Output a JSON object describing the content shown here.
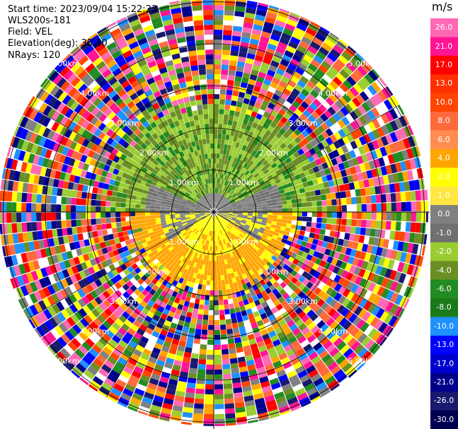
{
  "header": {
    "start_time": "Start time: 2023/09/04 15:22:23",
    "instrument": "WLS200s-181",
    "field": "Field: VEL",
    "elevation": "Elevation(deg): 35.30",
    "nrays": "NRays: 120"
  },
  "chart_data": {
    "type": "ppi",
    "field": "VEL",
    "units": "m/s",
    "nrays": 120,
    "range_rings_km": [
      1.0,
      2.0,
      3.0,
      4.0,
      5.0
    ],
    "ring_labels": [
      "1.00km",
      "2.00km",
      "3.00km",
      "4.00km",
      "5.00km"
    ],
    "colorbar": {
      "title": "m/s",
      "ticks": [
        "26.0",
        "21.0",
        "17.0",
        "13.0",
        "10.0",
        "8.0",
        "6.0",
        "4.0",
        "2.0",
        "1.0",
        "0.0",
        "-1.0",
        "-2.0",
        "-4.0",
        "-6.0",
        "-8.0",
        "-10.0",
        "-13.0",
        "-17.0",
        "-21.0",
        "-26.0",
        "-30.0"
      ],
      "colors": [
        "#ff69b4",
        "#ff1493",
        "#ff0000",
        "#ff3000",
        "#ff4500",
        "#ff6a3c",
        "#ff8c50",
        "#ffa500",
        "#ffff00",
        "#ffe640",
        "#808080",
        "#707070",
        "#9acd32",
        "#6b8e23",
        "#228b22",
        "#1a7a1a",
        "#1e90ff",
        "#0000ff",
        "#0000cd",
        "#00008b",
        "#191970",
        "#000050"
      ]
    },
    "rings": [
      {
        "range_km": 1.0,
        "pattern": "mostly green north, gray/yellow near zero"
      },
      {
        "range_km": 2.0,
        "pattern": "green north, yellow/orange south"
      },
      {
        "range_km": 3.0,
        "pattern": "noisy mixed colors"
      }
    ]
  }
}
